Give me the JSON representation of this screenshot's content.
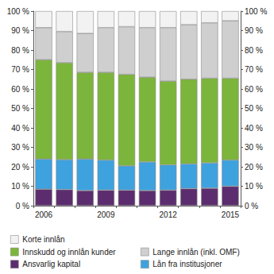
{
  "chart_data": {
    "type": "bar",
    "stacked": true,
    "grid": false,
    "legend": "bottom",
    "categories": [
      "2006",
      null,
      null,
      "2009",
      null,
      null,
      "2012",
      null,
      null,
      "2015"
    ],
    "ylim": [
      0,
      100
    ],
    "yticks": [
      {
        "value": 0,
        "label": "0 %"
      },
      {
        "value": 10,
        "label": "10 %"
      },
      {
        "value": 20,
        "label": "20 %"
      },
      {
        "value": 30,
        "label": "30 %"
      },
      {
        "value": 40,
        "label": "40 %"
      },
      {
        "value": 50,
        "label": "50 %"
      },
      {
        "value": 60,
        "label": "60 %"
      },
      {
        "value": 70,
        "label": "70 %"
      },
      {
        "value": 80,
        "label": "80 %"
      },
      {
        "value": 90,
        "label": "90 %"
      },
      {
        "value": 100,
        "label": "100 %"
      }
    ],
    "y2lim": [
      0,
      100
    ],
    "y2ticks": [
      {
        "value": 0,
        "label": "0 %"
      },
      {
        "value": 10,
        "label": "10 %"
      },
      {
        "value": 20,
        "label": "20 %"
      },
      {
        "value": 30,
        "label": "30 %"
      },
      {
        "value": 40,
        "label": "40 %"
      },
      {
        "value": 50,
        "label": "50 %"
      },
      {
        "value": 60,
        "label": "60 %"
      },
      {
        "value": 70,
        "label": "70 %"
      },
      {
        "value": 80,
        "label": "80 %"
      },
      {
        "value": 90,
        "label": "90 %"
      },
      {
        "value": 100,
        "label": "100 %"
      }
    ],
    "series": [
      {
        "name": "Ansvarlig kapital",
        "color": "#5c2d6e",
        "values": [
          8.5,
          8.3,
          7.8,
          8,
          8,
          7.8,
          8,
          8.8,
          9,
          10
        ]
      },
      {
        "name": "Lån fra institusjoner",
        "color": "#3ea2de",
        "values": [
          15.5,
          15.4,
          16.2,
          15.5,
          12.5,
          14.7,
          13,
          12.7,
          13,
          13.5
        ]
      },
      {
        "name": "Innskudd og innlån kunder",
        "color": "#7cb53b",
        "values": [
          51,
          49.8,
          44.5,
          45,
          47,
          43.5,
          43,
          43.5,
          43.5,
          42
        ]
      },
      {
        "name": "Lange innlån (inkl. OMF)",
        "color": "#cfcfcf",
        "values": [
          16.5,
          16,
          20,
          23,
          24.5,
          25.5,
          27.5,
          28,
          28.5,
          29.5
        ]
      },
      {
        "name": "Korte innlån",
        "color": "#f2f2f2",
        "values": [
          8.5,
          10.5,
          11.5,
          8.5,
          8,
          8.5,
          8.5,
          7,
          6,
          5
        ]
      }
    ]
  }
}
